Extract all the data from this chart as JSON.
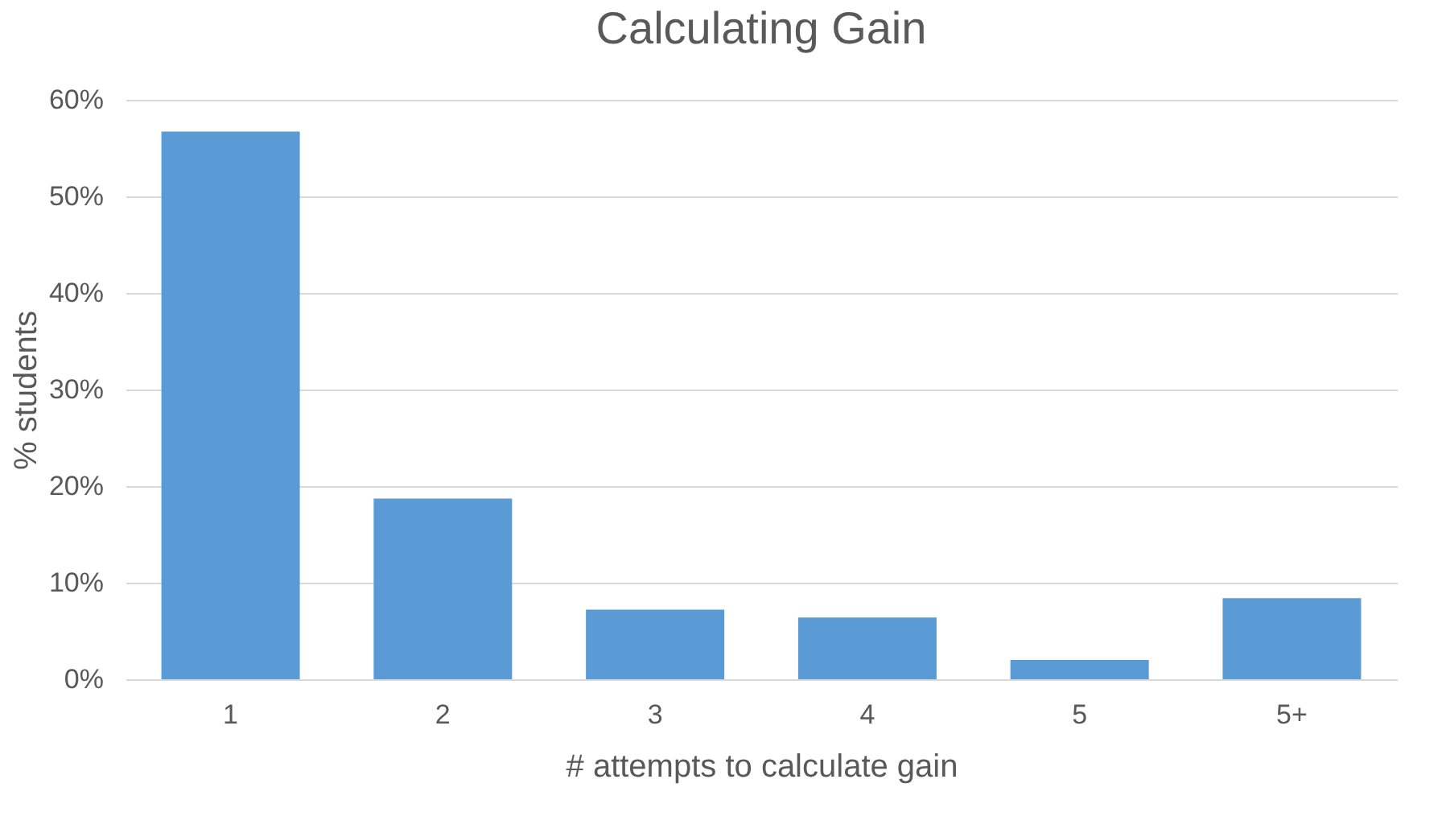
{
  "chart_data": {
    "type": "bar",
    "title": "Calculating Gain",
    "xlabel": "# attempts to calculate gain",
    "ylabel": "% students",
    "categories": [
      "1",
      "2",
      "3",
      "4",
      "5",
      "5+"
    ],
    "values": [
      56.7,
      18.7,
      7.2,
      6.4,
      2.0,
      8.4
    ],
    "color": "#5b9bd5",
    "ylim": [
      0,
      60
    ],
    "yticks": [
      {
        "value": 0,
        "label": "0%"
      },
      {
        "value": 10,
        "label": "10%"
      },
      {
        "value": 20,
        "label": "20%"
      },
      {
        "value": 30,
        "label": "30%"
      },
      {
        "value": 40,
        "label": "40%"
      },
      {
        "value": 50,
        "label": "50%"
      },
      {
        "value": 60,
        "label": "60%"
      }
    ],
    "grid": "y"
  }
}
